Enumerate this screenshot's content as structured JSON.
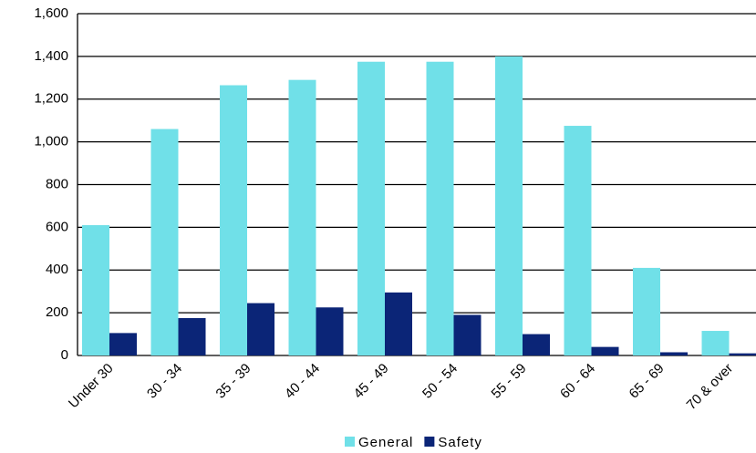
{
  "chart_data": {
    "type": "bar",
    "categories": [
      "Under 30",
      "30 - 34",
      "35 - 39",
      "40 - 44",
      "45 - 49",
      "50 - 54",
      "55 - 59",
      "60 - 64",
      "65 - 69",
      "70 & over"
    ],
    "series": [
      {
        "name": "General",
        "color": "#70e0e8",
        "values": [
          610,
          1060,
          1265,
          1290,
          1375,
          1375,
          1400,
          1075,
          410,
          115
        ]
      },
      {
        "name": "Safety",
        "color": "#0b2577",
        "values": [
          105,
          175,
          245,
          225,
          295,
          190,
          100,
          40,
          15,
          10
        ]
      }
    ],
    "ylim": [
      0,
      1600
    ],
    "yticks": [
      0,
      200,
      400,
      600,
      800,
      {
        "value": 1000,
        "label": "1,000"
      },
      {
        "value": 1200,
        "label": "1,200"
      },
      {
        "value": 1400,
        "label": "1,400"
      },
      {
        "value": 1600,
        "label": "1,600"
      }
    ],
    "grid": true,
    "legend": "bottom"
  }
}
